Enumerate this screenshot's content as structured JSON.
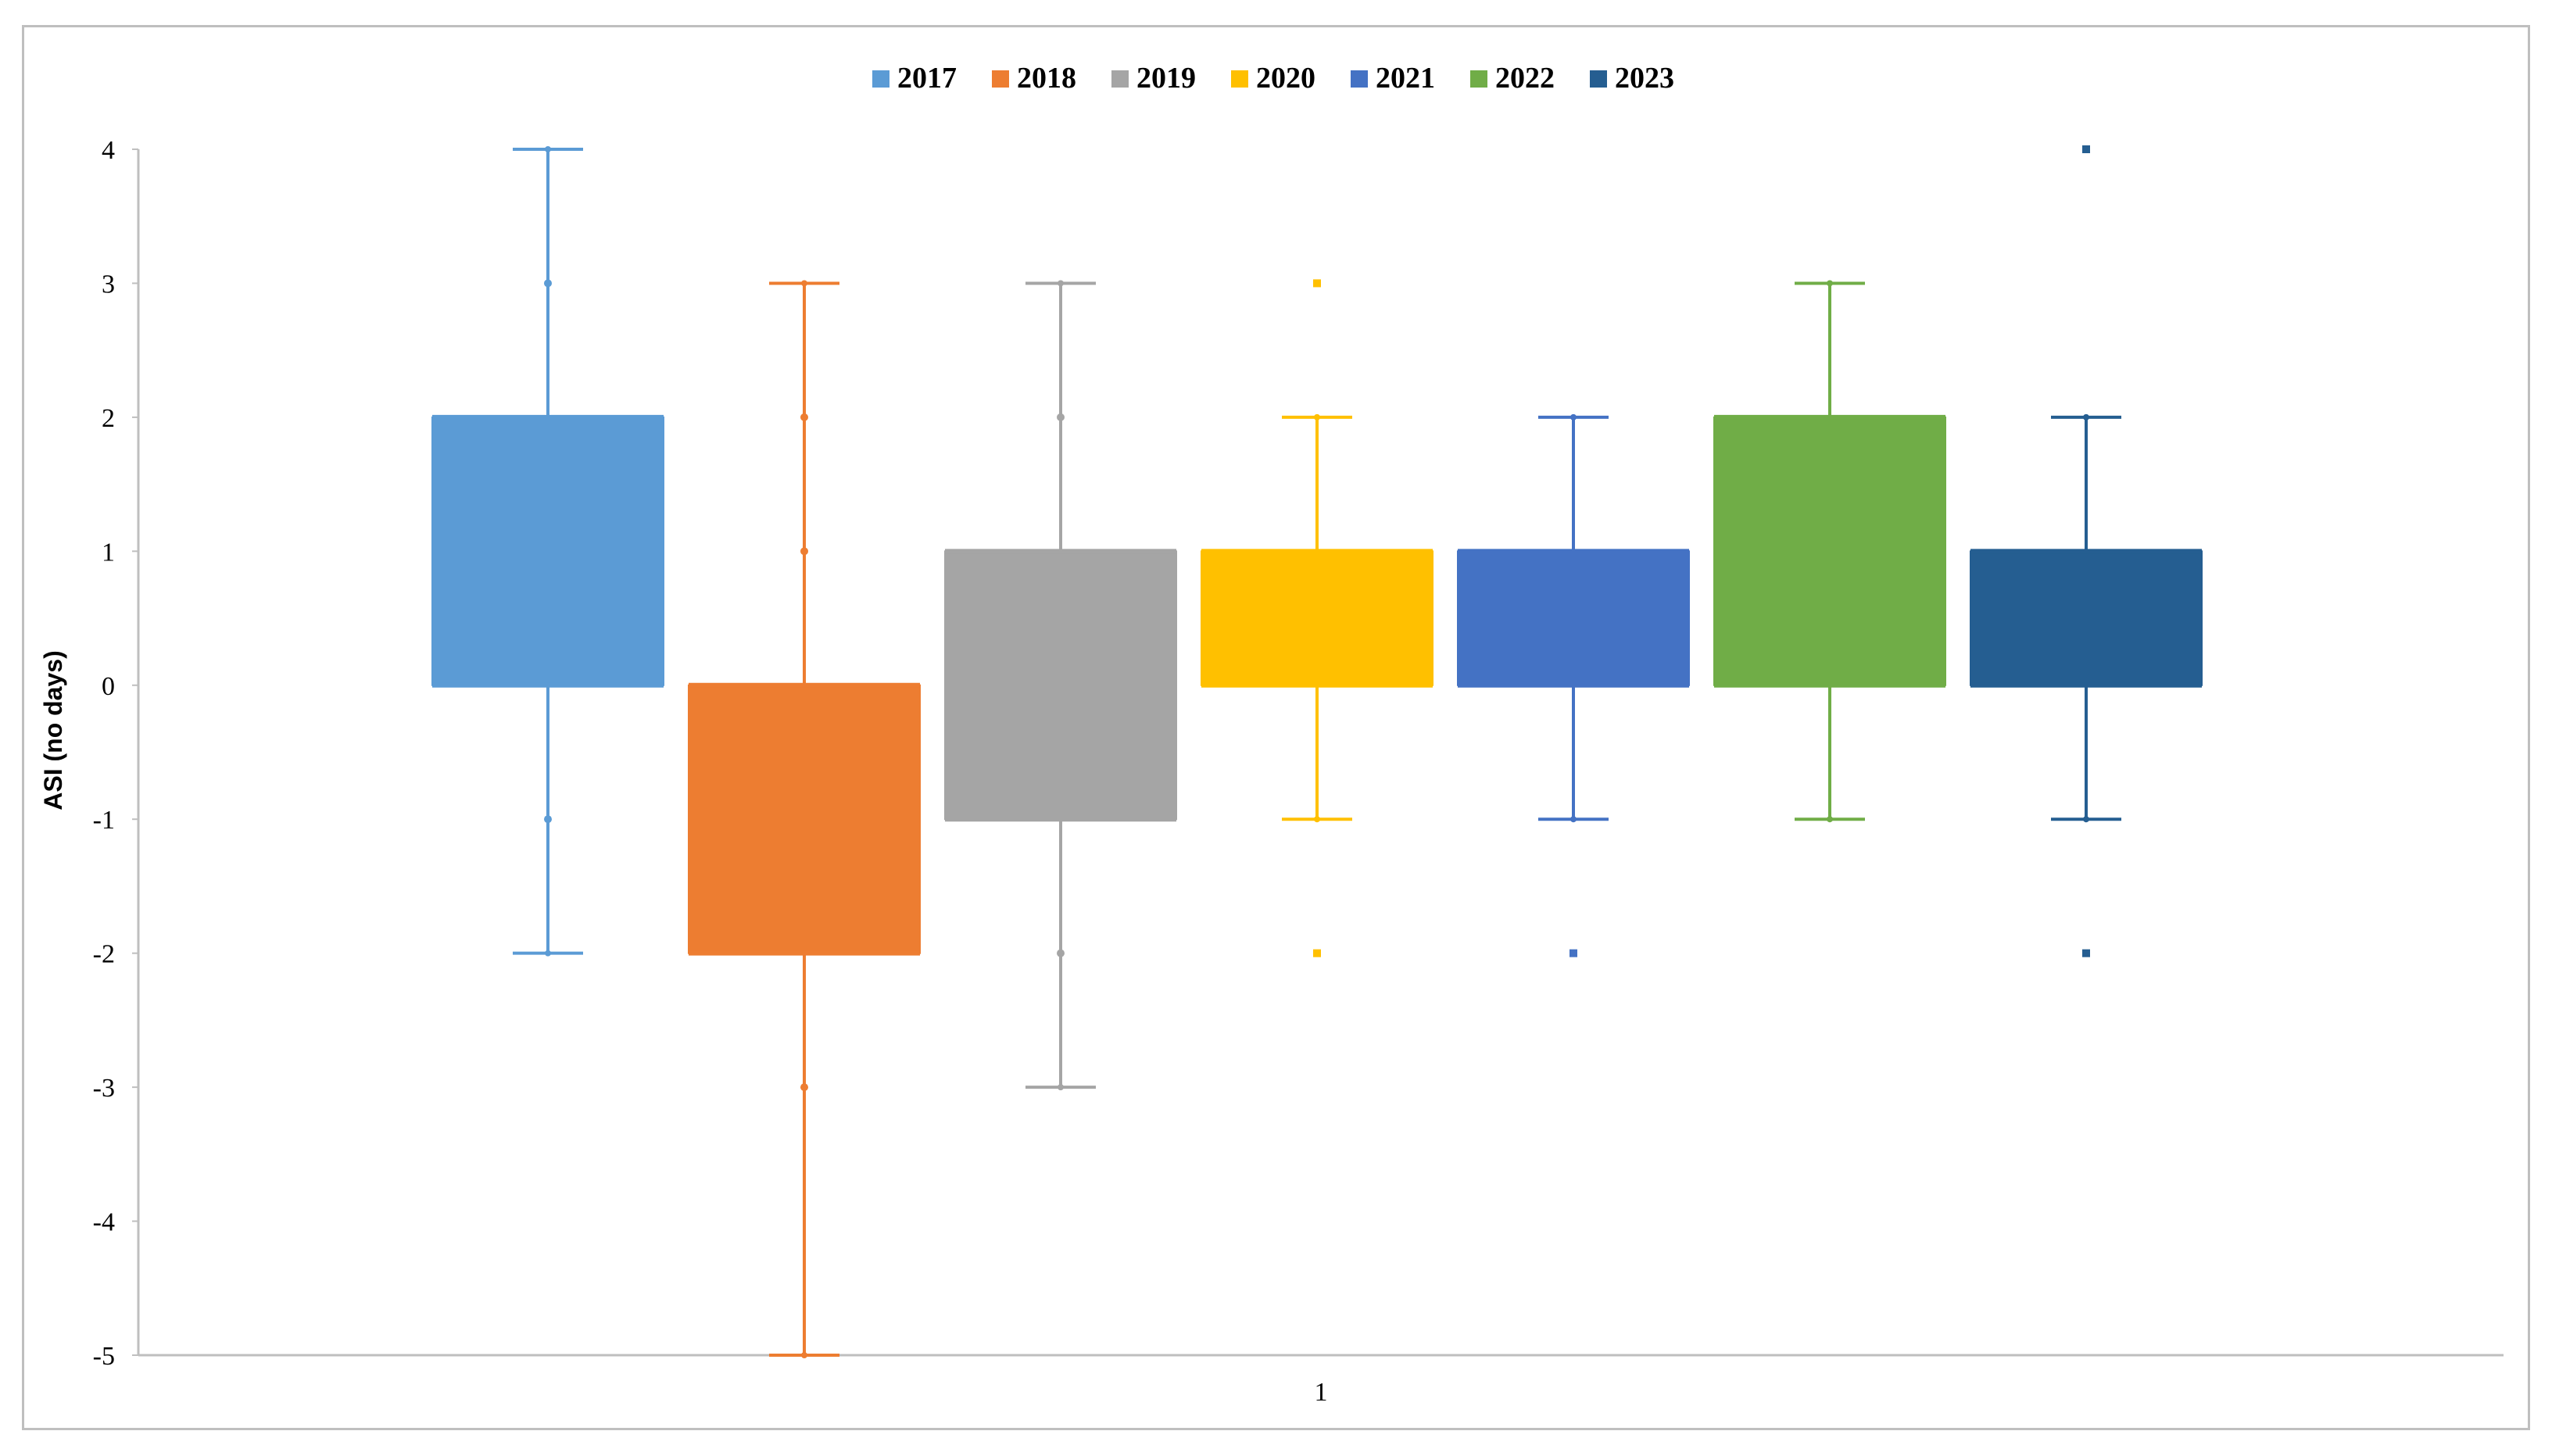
{
  "chart_data": {
    "type": "boxplot",
    "title": "",
    "xlabel": "",
    "ylabel": "ASI (no days)",
    "ylim": [
      -5,
      4
    ],
    "yticks": [
      4,
      3,
      2,
      1,
      0,
      -1,
      -2,
      -3,
      -4,
      -5
    ],
    "categories": [
      "1"
    ],
    "legend_position": "top",
    "grid": false,
    "series": [
      {
        "name": "2017",
        "color": "#5B9BD5",
        "whisker_low": -2,
        "q1": 0,
        "median": 2,
        "q3": 2,
        "whisker_high": 4,
        "points": [
          3,
          -1
        ],
        "outliers": []
      },
      {
        "name": "2018",
        "color": "#ED7D31",
        "whisker_low": -5,
        "q1": -2,
        "median": 0,
        "q3": 0,
        "whisker_high": 3,
        "points": [
          2,
          1,
          -3
        ],
        "outliers": []
      },
      {
        "name": "2019",
        "color": "#A5A5A5",
        "whisker_low": -3,
        "q1": -1,
        "median": 1,
        "q3": 1,
        "whisker_high": 3,
        "points": [
          2,
          -2
        ],
        "outliers": []
      },
      {
        "name": "2020",
        "color": "#FFC000",
        "whisker_low": -1,
        "q1": 0,
        "median": 1,
        "q3": 1,
        "whisker_high": 2,
        "points": [],
        "outliers": [
          3,
          -2
        ]
      },
      {
        "name": "2021",
        "color": "#4472C4",
        "whisker_low": -1,
        "q1": 0,
        "median": 1,
        "q3": 1,
        "whisker_high": 2,
        "points": [],
        "outliers": [
          -2
        ]
      },
      {
        "name": "2022",
        "color": "#70AD47",
        "whisker_low": -1,
        "q1": 0,
        "median": 2,
        "q3": 2,
        "whisker_high": 3,
        "points": [],
        "outliers": []
      },
      {
        "name": "2023",
        "color": "#255E91",
        "whisker_low": -1,
        "q1": 0,
        "median": 1,
        "q3": 1,
        "whisker_high": 2,
        "points": [],
        "outliers": [
          4,
          -2
        ]
      }
    ]
  }
}
